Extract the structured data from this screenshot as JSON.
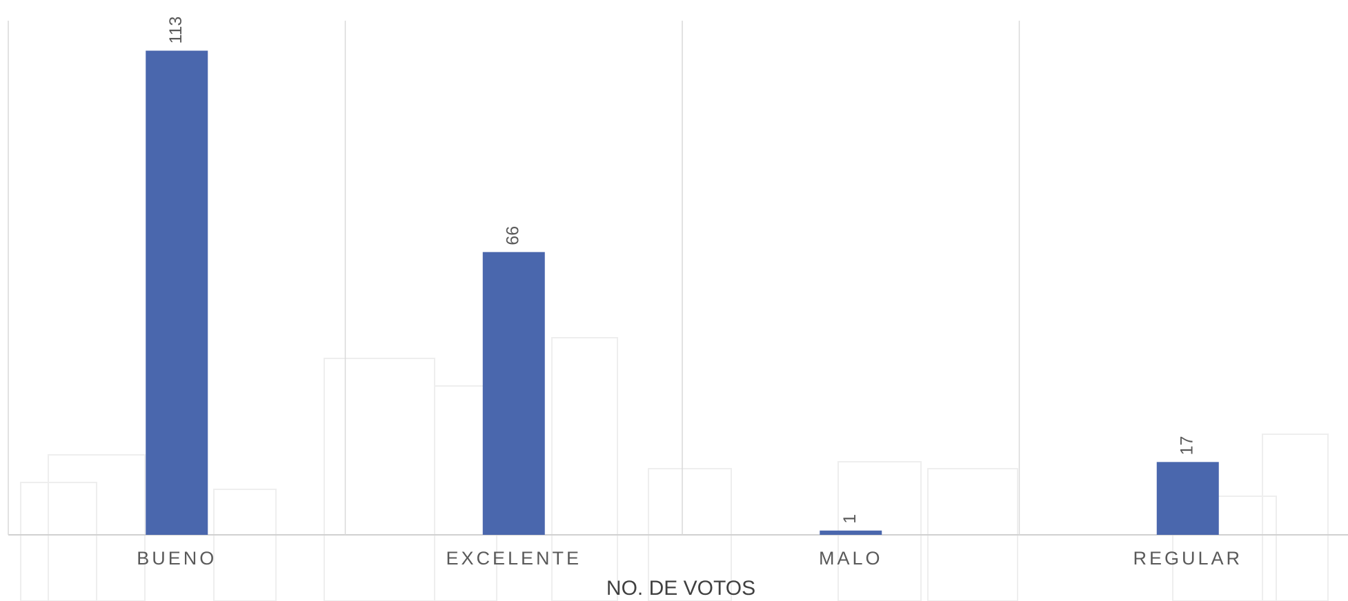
{
  "chart_data": {
    "type": "bar",
    "x_label": "NO. DE VOTOS",
    "categories": [
      "BUENO",
      "EXCELENTE",
      "MALO",
      "REGULAR"
    ],
    "values": [
      113,
      66,
      1,
      17
    ],
    "color": "#4a67ad",
    "ylim": [
      0,
      120
    ],
    "data_labels": true
  }
}
